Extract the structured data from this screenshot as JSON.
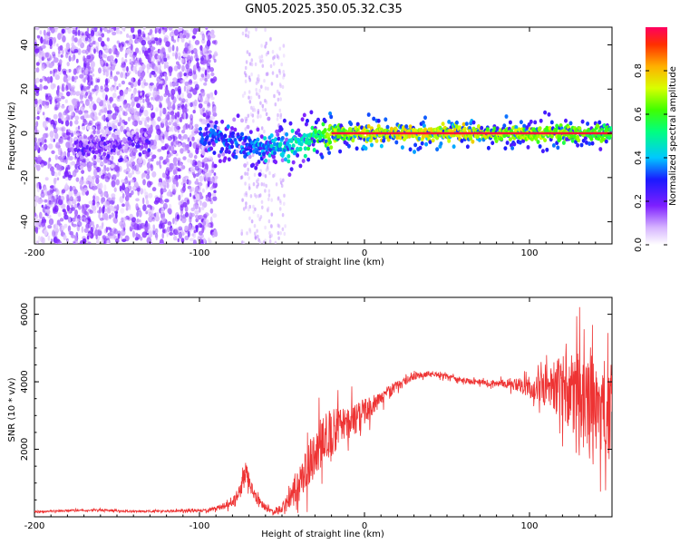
{
  "chart_data": [
    {
      "type": "heatmap",
      "title": "GN05.2025.350.05.32.C35",
      "xlabel": "Height of straight line (km)",
      "ylabel": "Frequency (Hz)",
      "xlim": [
        -200,
        150
      ],
      "ylim": [
        -50,
        48
      ],
      "xticks": [
        -200,
        -100,
        0,
        100
      ],
      "yticks": [
        -40,
        -20,
        0,
        20,
        40
      ],
      "colorbar": {
        "label": "Normalized spectral amplitude",
        "range": [
          0.0,
          1.0
        ],
        "ticks": [
          0.0,
          0.2,
          0.4,
          0.6,
          0.8
        ],
        "colormap": "rainbow"
      },
      "ridge": {
        "description": "peak frequency track vs height",
        "x": [
          -160,
          -145,
          -100,
          -90,
          -80,
          -70,
          -60,
          -50,
          -40,
          -30,
          -20,
          -10,
          0,
          20,
          40,
          60,
          80,
          100,
          120,
          140,
          150
        ],
        "freq": [
          -6,
          -4,
          -3,
          -2,
          -4,
          -6,
          -8,
          -6,
          -4,
          -2,
          0,
          0,
          0,
          0,
          0,
          0,
          0,
          0,
          0,
          0,
          0
        ],
        "amplitude": [
          0.22,
          0.2,
          0.35,
          0.45,
          0.4,
          0.45,
          0.5,
          0.55,
          0.6,
          0.7,
          0.9,
          0.85,
          0.95,
          0.97,
          0.97,
          0.96,
          0.9,
          0.88,
          0.85,
          0.8,
          0.75
        ]
      }
    },
    {
      "type": "line",
      "title": "",
      "xlabel": "Height of straight line (km)",
      "ylabel": "SNR (10 * v/v)",
      "xlim": [
        -200,
        150
      ],
      "ylim": [
        0,
        6500
      ],
      "xticks": [
        -200,
        -100,
        0,
        100
      ],
      "yticks": [
        2000,
        4000,
        6000
      ],
      "color": "#ee3333",
      "series": [
        {
          "name": "SNR",
          "x": [
            -200,
            -180,
            -160,
            -140,
            -120,
            -100,
            -90,
            -80,
            -75,
            -72,
            -68,
            -65,
            -60,
            -55,
            -50,
            -45,
            -40,
            -35,
            -30,
            -25,
            -20,
            -15,
            -10,
            -5,
            0,
            5,
            10,
            15,
            20,
            25,
            30,
            35,
            40,
            45,
            50,
            55,
            60,
            65,
            70,
            75,
            80,
            85,
            90,
            95,
            100,
            105,
            110,
            115,
            120,
            125,
            130,
            135,
            140,
            145,
            150
          ],
          "values": [
            150,
            180,
            200,
            160,
            170,
            180,
            250,
            400,
            800,
            1300,
            900,
            500,
            300,
            150,
            250,
            500,
            900,
            1400,
            1900,
            2300,
            2500,
            2700,
            2800,
            2900,
            3100,
            3300,
            3500,
            3700,
            3900,
            4050,
            4150,
            4200,
            4250,
            4200,
            4150,
            4100,
            4050,
            4000,
            4000,
            3950,
            3950,
            3950,
            3900,
            3900,
            3850,
            3800,
            3900,
            4000,
            3800,
            3700,
            3500,
            3400,
            3300,
            3200,
            3100
          ],
          "spread": [
            40,
            40,
            40,
            40,
            40,
            60,
            80,
            150,
            300,
            400,
            300,
            200,
            150,
            100,
            200,
            400,
            600,
            800,
            900,
            900,
            900,
            800,
            700,
            600,
            500,
            400,
            300,
            250,
            200,
            150,
            120,
            100,
            100,
            100,
            100,
            100,
            100,
            100,
            100,
            100,
            120,
            150,
            200,
            300,
            400,
            600,
            800,
            1000,
            1200,
            1500,
            1700,
            1800,
            1800,
            1800,
            1800
          ]
        }
      ]
    }
  ]
}
